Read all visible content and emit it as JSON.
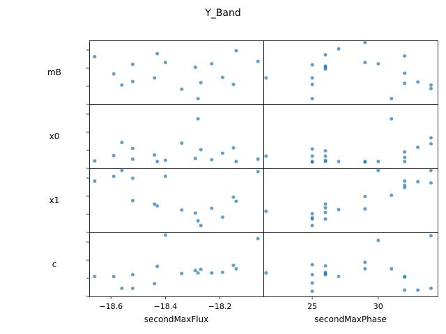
{
  "title": "Y_Band",
  "chart_data": {
    "type": "scatter",
    "title": "Y_Band",
    "point_color": "#1f77b4",
    "grid": false,
    "rows": [
      "mB",
      "x0",
      "x1",
      "c"
    ],
    "columns": [
      {
        "xlabel": "secondMaxFlux",
        "xlim": [
          -18.68,
          -18.04
        ],
        "xticks": [
          -18.6,
          -18.4,
          -18.2
        ],
        "xtick_labels": [
          "−18.6",
          "−18.4",
          "−18.2"
        ],
        "x": [
          -18.66,
          -18.59,
          -18.56,
          -18.52,
          -18.52,
          -18.44,
          -18.43,
          -18.4,
          -18.34,
          -18.29,
          -18.28,
          -18.27,
          -18.23,
          -18.19,
          -18.15,
          -18.14,
          -18.06
        ]
      },
      {
        "xlabel": "secondMaxPhase",
        "xlim": [
          21.3,
          34.5
        ],
        "xticks": [
          25,
          30
        ],
        "xtick_labels": [
          "25",
          "30"
        ],
        "x": [
          21.5,
          25,
          25,
          25,
          25,
          26,
          26,
          26,
          26,
          27,
          29,
          29,
          30,
          31,
          32,
          32,
          32,
          33,
          34,
          34
        ]
      }
    ],
    "panels": [
      [
        {
          "row": "mB",
          "col": "secondMaxFlux",
          "y": [
            0.76,
            0.47,
            0.28,
            0.34,
            0.63,
            0.4,
            0.81,
            0.66,
            0.21,
            0.58,
            0.05,
            0.32,
            0.64,
            0.41,
            0.29,
            0.86,
            0.68
          ]
        },
        {
          "row": "x0",
          "col": "secondMaxFlux",
          "y": [
            0.08,
            0.17,
            0.39,
            0.29,
            0.11,
            0.18,
            0.07,
            0.09,
            0.38,
            0.12,
            0.79,
            0.27,
            0.1,
            0.21,
            0.3,
            0.07,
            0.11
          ]
        },
        {
          "row": "x1",
          "col": "secondMaxFlux",
          "y": [
            0.82,
            0.9,
            1.0,
            0.87,
            0.49,
            0.43,
            0.4,
            0.9,
            0.33,
            0.28,
            0.15,
            0.07,
            0.36,
            0.21,
            0.55,
            0.48,
            0.98
          ]
        },
        {
          "row": "c",
          "col": "secondMaxFlux",
          "y": [
            0.29,
            0.29,
            0.09,
            0.09,
            0.32,
            0.17,
            0.46,
            0.99,
            0.34,
            0.39,
            0.35,
            0.41,
            0.35,
            0.36,
            0.48,
            0.42,
            0.93
          ]
        }
      ],
      [
        {
          "row": "mB",
          "col": "secondMaxPhase",
          "y": [
            0.4,
            0.29,
            0.4,
            0.62,
            0.05,
            0.6,
            0.55,
            0.79,
            0.58,
            0.89,
            1.0,
            0.66,
            0.64,
            0.05,
            0.77,
            0.48,
            0.31,
            0.33,
            0.28,
            0.22
          ]
        },
        {
          "row": "x0",
          "col": "secondMaxPhase",
          "y": [
            0.16,
            0.28,
            0.16,
            0.06,
            0.07,
            0.25,
            0.09,
            0.07,
            0.16,
            0.07,
            0.06,
            0.07,
            0.07,
            0.79,
            0.14,
            0.07,
            0.23,
            0.31,
            0.47,
            0.37
          ]
        },
        {
          "row": "x1",
          "col": "secondMaxPhase",
          "y": [
            0.31,
            0.27,
            0.18,
            0.07,
            0.2,
            0.29,
            0.37,
            0.43,
            0.18,
            0.34,
            0.56,
            0.35,
            1.0,
            0.58,
            0.82,
            0.75,
            0.71,
            0.81,
            1.0,
            0.79
          ]
        },
        {
          "row": "c",
          "col": "secondMaxPhase",
          "y": [
            0.35,
            0.49,
            0.18,
            0.32,
            0.04,
            0.32,
            0.34,
            0.36,
            0.47,
            0.29,
            0.42,
            0.53,
            0.9,
            0.42,
            0.28,
            0.29,
            0.06,
            0.06,
            0.98,
            0.09
          ]
        }
      ]
    ]
  }
}
